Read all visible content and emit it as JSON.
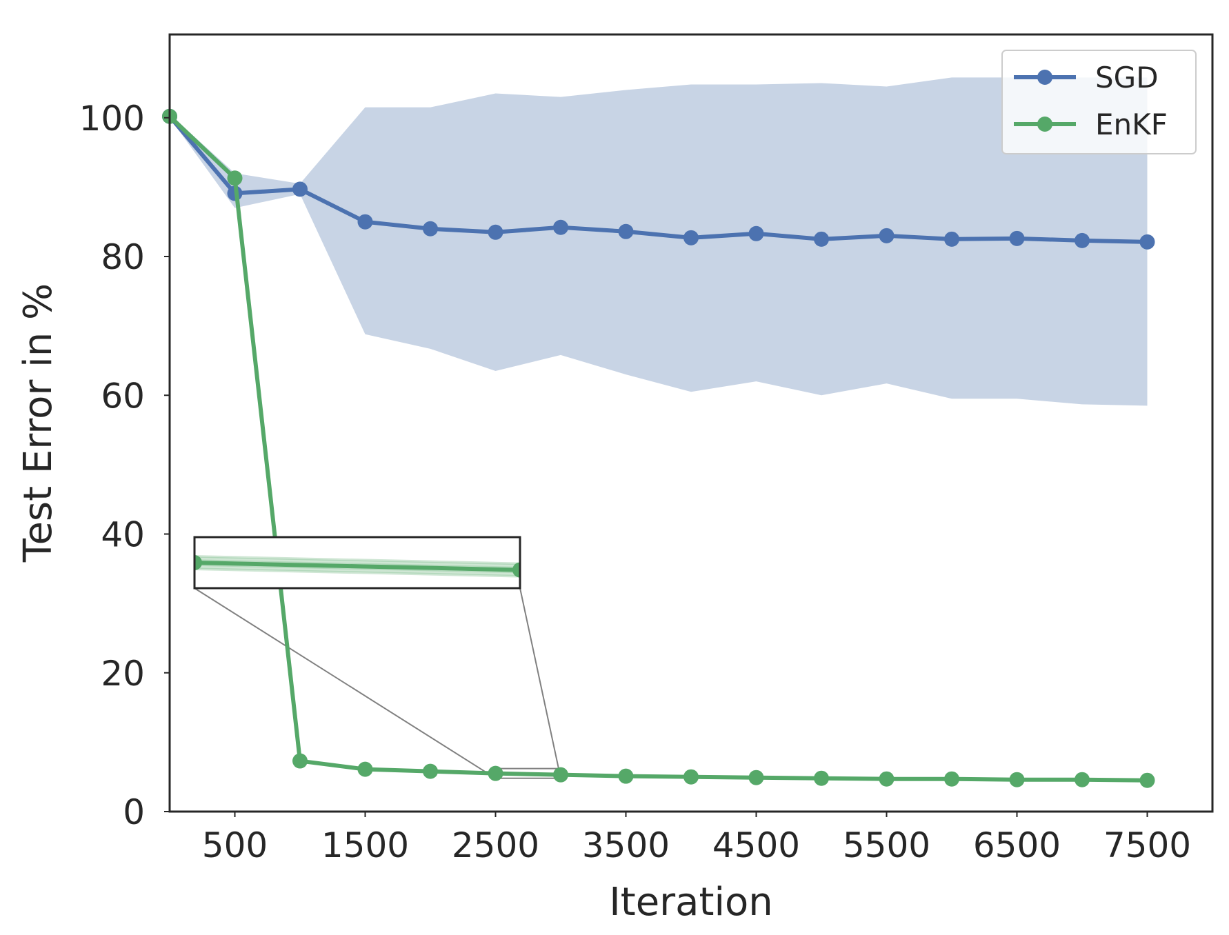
{
  "chart_data": {
    "type": "line",
    "title": "",
    "xlabel": "Iteration",
    "ylabel": "Test Error in %",
    "xlim": [
      0,
      8000
    ],
    "ylim": [
      0,
      112
    ],
    "xticks": [
      500,
      1500,
      2500,
      3500,
      4500,
      5500,
      6500,
      7500
    ],
    "xtick_labels": [
      "500",
      "1500",
      "2500",
      "3500",
      "4500",
      "5500",
      "6500",
      "7500"
    ],
    "yticks": [
      0,
      20,
      40,
      60,
      80,
      100
    ],
    "ytick_labels": [
      "0",
      "20",
      "40",
      "60",
      "80",
      "100"
    ],
    "grid": false,
    "legend_position": "top-right",
    "series": [
      {
        "name": "SGD",
        "color": "#4c72b0",
        "band_color": "#c8d4e5",
        "x": [
          0,
          500,
          1000,
          1500,
          2000,
          2500,
          3000,
          3500,
          4000,
          4500,
          5000,
          5500,
          6000,
          6500,
          7000,
          7500
        ],
        "values": [
          100.2,
          89.1,
          89.7,
          85.0,
          84.0,
          83.5,
          84.2,
          83.6,
          82.7,
          83.3,
          82.5,
          83.0,
          82.5,
          82.6,
          82.3,
          82.1
        ],
        "band_upper": [
          100.5,
          92.0,
          90.5,
          101.5,
          101.5,
          103.5,
          103.0,
          104.0,
          104.8,
          104.8,
          105.0,
          104.5,
          105.8,
          105.8,
          105.8,
          105.8
        ],
        "band_lower": [
          100.0,
          87.0,
          89.0,
          68.8,
          66.7,
          63.5,
          65.8,
          63.0,
          60.5,
          62.0,
          60.0,
          61.7,
          59.5,
          59.5,
          58.7,
          58.5
        ]
      },
      {
        "name": "EnKF",
        "color": "#55a868",
        "x": [
          0,
          500,
          1000,
          1500,
          2000,
          2500,
          3000,
          3500,
          4000,
          4500,
          5000,
          5500,
          6000,
          6500,
          7000,
          7500
        ],
        "values": [
          100.2,
          91.3,
          7.3,
          6.1,
          5.8,
          5.5,
          5.3,
          5.1,
          5.0,
          4.9,
          4.8,
          4.7,
          4.7,
          4.6,
          4.6,
          4.5
        ]
      }
    ],
    "inset": {
      "x_range": [
        2500,
        3000
      ],
      "y_range": [
        4.8,
        6.2
      ],
      "series": "EnKF",
      "connector_color": "#808080"
    }
  }
}
